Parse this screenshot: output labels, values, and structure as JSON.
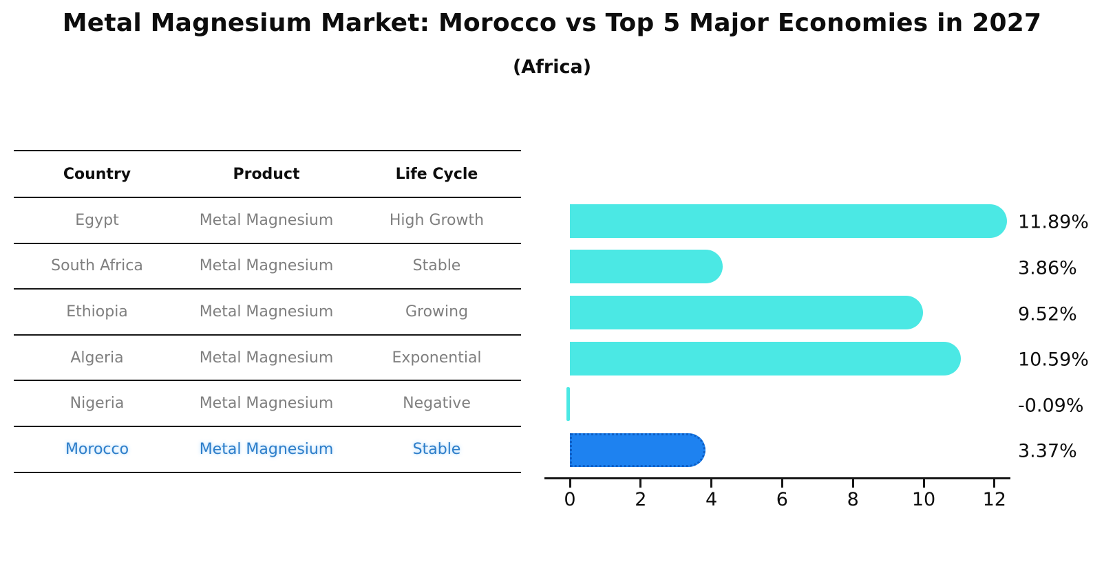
{
  "header": {
    "title": "Metal Magnesium Market: Morocco vs Top 5 Major Economies in 2027",
    "subtitle": "(Africa)"
  },
  "table": {
    "columns": [
      "Country",
      "Product",
      "Life Cycle"
    ]
  },
  "chart_data": {
    "type": "bar",
    "orientation": "horizontal",
    "title": "Metal Magnesium Market: Morocco vs Top 5 Major Economies in 2027",
    "subtitle": "(Africa)",
    "categories": [
      "Egypt",
      "South Africa",
      "Ethiopia",
      "Algeria",
      "Nigeria",
      "Morocco"
    ],
    "values": [
      11.89,
      3.86,
      9.52,
      10.59,
      -0.09,
      3.37
    ],
    "value_labels": [
      "11.89%",
      "3.86%",
      "9.52%",
      "10.59%",
      "-0.09%",
      "3.37%"
    ],
    "x_ticks": [
      "0",
      "2",
      "4",
      "6",
      "8",
      "10",
      "12"
    ],
    "x_tick_values": [
      0,
      2,
      4,
      6,
      8,
      10,
      12
    ],
    "xlim": [
      -0.3,
      12.5
    ],
    "grid": false,
    "legend": false,
    "highlight_index": 5,
    "colors": {
      "bar": "#4be8e4",
      "highlight_bar": "#1e82f0",
      "highlight_border": "#0d5ec4",
      "highlight_text": "#2e7ec9",
      "row_text": "#7f7f7f",
      "axis": "#161616"
    },
    "rows": [
      {
        "country": "Egypt",
        "product": "Metal Magnesium",
        "life_cycle": "High Growth",
        "value": 11.89,
        "label": "11.89%",
        "highlight": false
      },
      {
        "country": "South Africa",
        "product": "Metal Magnesium",
        "life_cycle": "Stable",
        "value": 3.86,
        "label": "3.86%",
        "highlight": false
      },
      {
        "country": "Ethiopia",
        "product": "Metal Magnesium",
        "life_cycle": "Growing",
        "value": 9.52,
        "label": "9.52%",
        "highlight": false
      },
      {
        "country": "Algeria",
        "product": "Metal Magnesium",
        "life_cycle": "Exponential",
        "value": 10.59,
        "label": "10.59%",
        "highlight": false
      },
      {
        "country": "Nigeria",
        "product": "Metal Magnesium",
        "life_cycle": "Negative",
        "value": -0.09,
        "label": "-0.09%",
        "highlight": false
      },
      {
        "country": "Morocco",
        "product": "Metal Magnesium",
        "life_cycle": "Stable",
        "value": 3.37,
        "label": "3.37%",
        "highlight": true
      }
    ]
  }
}
